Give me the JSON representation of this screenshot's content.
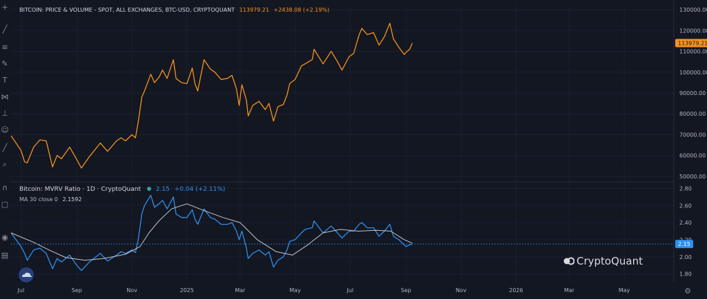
{
  "chart_data": [
    {
      "type": "line",
      "title": "BITCOIN: PRICE & VOLUME - SPOT, ALL EXCHANGES, BTC-USD, CRYPTOQUANT",
      "legend_value": "113979.21",
      "legend_change": "+2438.08 (+2.19%)",
      "last_value_label": "113979.21",
      "ylim": [
        48000,
        132000
      ],
      "y_ticks": [
        "130000.00",
        "120000.00",
        "110000.00",
        "100000.00",
        "90000.00",
        "80000.00",
        "70000.00",
        "60000.00",
        "50000.00"
      ],
      "y_tick_values": [
        130000,
        120000,
        110000,
        100000,
        90000,
        80000,
        70000,
        60000,
        50000
      ],
      "series": [
        {
          "color": "#f7931a",
          "x": [
            "2024-06-20",
            "2024-07-01",
            "2024-07-05",
            "2024-07-08",
            "2024-07-15",
            "2024-07-22",
            "2024-07-29",
            "2024-08-05",
            "2024-08-10",
            "2024-08-15",
            "2024-08-24",
            "2024-09-01",
            "2024-09-06",
            "2024-09-15",
            "2024-09-27",
            "2024-10-05",
            "2024-10-15",
            "2024-10-20",
            "2024-10-25",
            "2024-11-01",
            "2024-11-05",
            "2024-11-08",
            "2024-11-12",
            "2024-11-15",
            "2024-11-22",
            "2024-11-26",
            "2024-12-01",
            "2024-12-05",
            "2024-12-10",
            "2024-12-17",
            "2024-12-20",
            "2024-12-26",
            "2025-01-01",
            "2025-01-07",
            "2025-01-10",
            "2025-01-13",
            "2025-01-20",
            "2025-01-27",
            "2025-02-01",
            "2025-02-08",
            "2025-02-15",
            "2025-02-20",
            "2025-02-25",
            "2025-02-28",
            "2025-03-03",
            "2025-03-08",
            "2025-03-10",
            "2025-03-15",
            "2025-03-22",
            "2025-03-29",
            "2025-04-02",
            "2025-04-07",
            "2025-04-12",
            "2025-04-18",
            "2025-04-22",
            "2025-04-25",
            "2025-05-01",
            "2025-05-08",
            "2025-05-12",
            "2025-05-20",
            "2025-05-22",
            "2025-06-01",
            "2025-06-10",
            "2025-06-17",
            "2025-06-22",
            "2025-06-30",
            "2025-07-05",
            "2025-07-11",
            "2025-07-14",
            "2025-07-20",
            "2025-07-27",
            "2025-08-02",
            "2025-08-08",
            "2025-08-14",
            "2025-08-18",
            "2025-08-24",
            "2025-08-30",
            "2025-09-01",
            "2025-09-05",
            "2025-09-08"
          ],
          "y": [
            69500,
            62500,
            57000,
            56500,
            64000,
            67500,
            67000,
            54500,
            60000,
            58500,
            64000,
            58000,
            54000,
            59500,
            66000,
            62000,
            67000,
            68500,
            67000,
            70000,
            68500,
            76000,
            88000,
            91000,
            99000,
            95000,
            97500,
            101000,
            97000,
            106000,
            97000,
            95000,
            94500,
            102000,
            94500,
            91000,
            106000,
            101500,
            100000,
            96500,
            97000,
            98500,
            92000,
            84000,
            94000,
            86500,
            79000,
            84000,
            86000,
            82000,
            85000,
            76500,
            83500,
            84500,
            89000,
            94500,
            96500,
            103000,
            104000,
            106000,
            111000,
            104000,
            110000,
            105000,
            101000,
            107500,
            109000,
            118000,
            121000,
            118000,
            119000,
            113000,
            117000,
            123500,
            116000,
            112000,
            108500,
            109500,
            111000,
            113979
          ]
        }
      ]
    },
    {
      "type": "line",
      "title": "Bitcoin: MVRV Ratio · 1D · CryptoQuant",
      "legend_value": "2.15",
      "legend_change": "+0.04 (+2.11%)",
      "ma_label": "MA 30 close 0",
      "ma_value": "2.1592",
      "last_value_label": "2.15",
      "ylim": [
        1.7,
        2.86
      ],
      "y_ticks": [
        "2.80",
        "2.60",
        "2.40",
        "2.20",
        "2.00",
        "1.80"
      ],
      "y_tick_values": [
        2.8,
        2.6,
        2.4,
        2.2,
        2.0,
        1.8
      ],
      "series": [
        {
          "name": "MVRV Ratio",
          "color": "#2d8ff0",
          "x": [
            "2024-06-20",
            "2024-07-01",
            "2024-07-05",
            "2024-07-08",
            "2024-07-15",
            "2024-07-22",
            "2024-07-29",
            "2024-08-05",
            "2024-08-10",
            "2024-08-15",
            "2024-08-24",
            "2024-09-01",
            "2024-09-06",
            "2024-09-15",
            "2024-09-27",
            "2024-10-05",
            "2024-10-15",
            "2024-10-20",
            "2024-10-25",
            "2024-11-01",
            "2024-11-05",
            "2024-11-08",
            "2024-11-12",
            "2024-11-15",
            "2024-11-22",
            "2024-11-26",
            "2024-12-01",
            "2024-12-05",
            "2024-12-10",
            "2024-12-17",
            "2024-12-20",
            "2024-12-26",
            "2025-01-01",
            "2025-01-07",
            "2025-01-10",
            "2025-01-13",
            "2025-01-20",
            "2025-01-27",
            "2025-02-01",
            "2025-02-08",
            "2025-02-15",
            "2025-02-20",
            "2025-02-25",
            "2025-02-28",
            "2025-03-03",
            "2025-03-08",
            "2025-03-10",
            "2025-03-15",
            "2025-03-22",
            "2025-03-29",
            "2025-04-02",
            "2025-04-07",
            "2025-04-12",
            "2025-04-18",
            "2025-04-22",
            "2025-04-25",
            "2025-05-01",
            "2025-05-08",
            "2025-05-12",
            "2025-05-20",
            "2025-05-22",
            "2025-06-01",
            "2025-06-10",
            "2025-06-17",
            "2025-06-22",
            "2025-06-30",
            "2025-07-05",
            "2025-07-11",
            "2025-07-14",
            "2025-07-20",
            "2025-07-27",
            "2025-08-02",
            "2025-08-08",
            "2025-08-14",
            "2025-08-18",
            "2025-08-24",
            "2025-08-30",
            "2025-09-01",
            "2025-09-05",
            "2025-09-08"
          ],
          "y": [
            2.28,
            2.12,
            2.04,
            1.96,
            2.08,
            2.1,
            2.04,
            1.86,
            1.98,
            1.94,
            2.02,
            1.9,
            1.84,
            1.94,
            2.04,
            1.95,
            2.02,
            2.06,
            2.04,
            2.08,
            2.05,
            2.2,
            2.5,
            2.6,
            2.72,
            2.58,
            2.62,
            2.66,
            2.56,
            2.7,
            2.5,
            2.46,
            2.46,
            2.55,
            2.44,
            2.38,
            2.56,
            2.46,
            2.44,
            2.38,
            2.38,
            2.4,
            2.3,
            2.2,
            2.3,
            2.1,
            1.98,
            2.04,
            2.08,
            2.02,
            2.06,
            1.88,
            1.96,
            2.0,
            2.08,
            2.18,
            2.2,
            2.28,
            2.32,
            2.34,
            2.42,
            2.28,
            2.36,
            2.28,
            2.22,
            2.3,
            2.3,
            2.38,
            2.4,
            2.34,
            2.34,
            2.24,
            2.3,
            2.38,
            2.24,
            2.2,
            2.14,
            2.12,
            2.14,
            2.15
          ]
        },
        {
          "name": "MA 30",
          "color": "#c8c8c8",
          "x": [
            "2024-06-20",
            "2024-07-15",
            "2024-08-01",
            "2024-08-20",
            "2024-09-10",
            "2024-10-01",
            "2024-10-25",
            "2024-11-10",
            "2024-11-20",
            "2024-12-01",
            "2024-12-15",
            "2025-01-01",
            "2025-01-20",
            "2025-02-10",
            "2025-03-01",
            "2025-03-20",
            "2025-04-10",
            "2025-04-28",
            "2025-05-15",
            "2025-06-01",
            "2025-06-20",
            "2025-07-10",
            "2025-07-30",
            "2025-08-15",
            "2025-08-30",
            "2025-09-08"
          ],
          "y": [
            2.28,
            2.17,
            2.08,
            1.99,
            1.96,
            1.98,
            2.03,
            2.12,
            2.28,
            2.42,
            2.56,
            2.62,
            2.54,
            2.46,
            2.4,
            2.2,
            2.06,
            2.02,
            2.14,
            2.28,
            2.32,
            2.3,
            2.31,
            2.3,
            2.2,
            2.16
          ]
        }
      ]
    }
  ],
  "x_axis": {
    "tick_labels": [
      "Jul",
      "Sep",
      "Nov",
      "2025",
      "Mar",
      "May",
      "Jul",
      "Sep",
      "Nov",
      "2026",
      "Mar",
      "May"
    ],
    "tick_dates": [
      "2024-07-01",
      "2024-09-01",
      "2024-11-01",
      "2025-01-01",
      "2025-03-01",
      "2025-05-01",
      "2025-07-01",
      "2025-09-01",
      "2025-11-01",
      "2026-01-01",
      "2026-03-01",
      "2026-05-01"
    ],
    "range": [
      "2024-06-20",
      "2026-06-25"
    ]
  },
  "watermark": "CryptoQuant",
  "colors": {
    "background": "#131722",
    "price": "#f7931a",
    "mvrv": "#2d8ff0",
    "ma": "#c8c8c8",
    "axis_text": "#b2b5be"
  },
  "toolbar_icons": [
    "crosshair-icon",
    "trend-line-icon",
    "fib-icon",
    "brush-icon",
    "text-icon",
    "pattern-icon",
    "measure-icon",
    "emoji-icon",
    "ruler-icon",
    "zoom-icon",
    "magnet-icon",
    "lock-icon",
    "eye-icon",
    "trash-icon"
  ]
}
